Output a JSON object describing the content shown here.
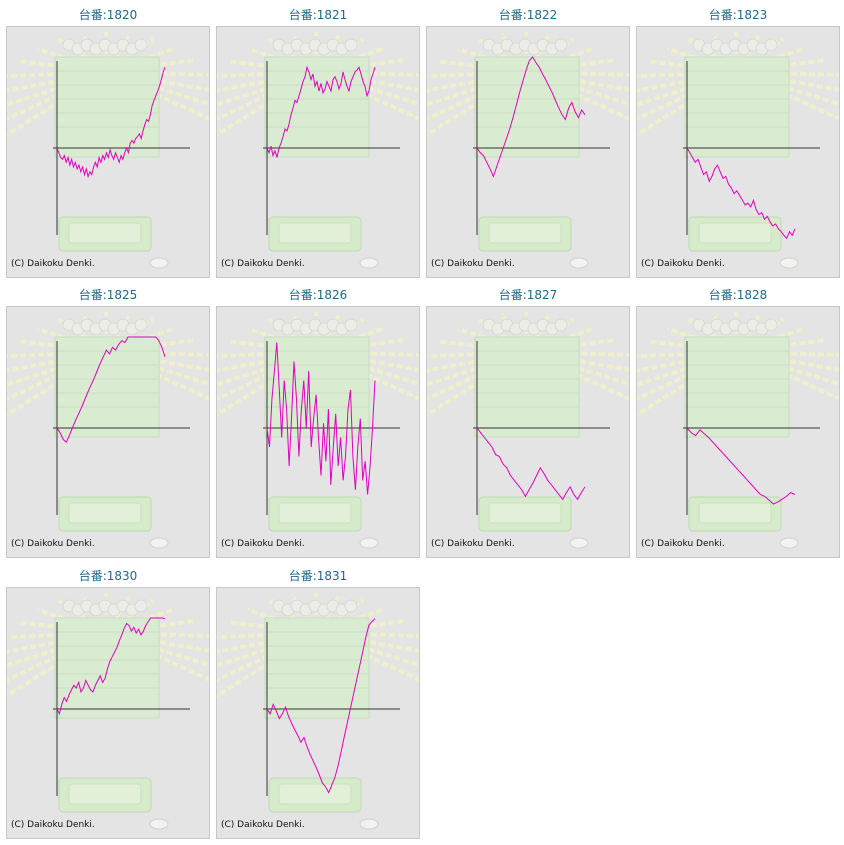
{
  "copyright": "(C) Daikoku Denki.",
  "line_color": "#e000c0",
  "title_color": "#1f6a8c",
  "background_art": "pachinko-pile-background",
  "chart_data": [
    {
      "type": "line",
      "title": "台番:1820",
      "values": [
        0,
        -0.05,
        -0.1,
        -0.12,
        -0.08,
        -0.15,
        -0.1,
        -0.18,
        -0.12,
        -0.2,
        -0.15,
        -0.22,
        -0.18,
        -0.25,
        -0.2,
        -0.28,
        -0.22,
        -0.3,
        -0.25,
        -0.28,
        -0.2,
        -0.15,
        -0.2,
        -0.1,
        -0.15,
        -0.08,
        -0.12,
        -0.05,
        -0.1,
        -0.02,
        -0.08,
        -0.12,
        -0.05,
        -0.1,
        -0.15,
        -0.08,
        -0.12,
        -0.05,
        0,
        -0.05,
        0.05,
        0.08,
        0.05,
        0.1,
        0.12,
        0.15,
        0.1,
        0.18,
        0.25,
        0.3,
        0.28,
        0.35,
        0.45,
        0.5,
        0.55,
        0.6,
        0.65,
        0.72,
        0.8,
        0.85
      ]
    },
    {
      "type": "line",
      "title": "台番:1821",
      "values": [
        0,
        -0.05,
        0.02,
        -0.08,
        -0.03,
        -0.1,
        0.0,
        0.05,
        0.12,
        0.2,
        0.18,
        0.25,
        0.35,
        0.42,
        0.5,
        0.48,
        0.55,
        0.62,
        0.7,
        0.75,
        0.85,
        0.8,
        0.72,
        0.78,
        0.65,
        0.7,
        0.6,
        0.68,
        0.58,
        0.62,
        0.7,
        0.65,
        0.6,
        0.72,
        0.75,
        0.7,
        0.62,
        0.68,
        0.8,
        0.72,
        0.65,
        0.6,
        0.7,
        0.75,
        0.8,
        0.82,
        0.85,
        0.78,
        0.7,
        0.65,
        0.55,
        0.6,
        0.72,
        0.78,
        0.85
      ]
    },
    {
      "type": "line",
      "title": "台番:1822",
      "values": [
        0,
        -0.05,
        -0.08,
        -0.15,
        -0.22,
        -0.3,
        -0.2,
        -0.1,
        0.0,
        0.1,
        0.2,
        0.32,
        0.45,
        0.58,
        0.7,
        0.82,
        0.92,
        0.98,
        0.9,
        0.85,
        0.78,
        0.72,
        0.65,
        0.58,
        0.5,
        0.42,
        0.35,
        0.3,
        0.42,
        0.48,
        0.38,
        0.32,
        0.4,
        0.35
      ]
    },
    {
      "type": "line",
      "title": "台番:1823",
      "values": [
        0,
        -0.05,
        -0.1,
        -0.15,
        -0.12,
        -0.2,
        -0.28,
        -0.25,
        -0.35,
        -0.3,
        -0.22,
        -0.18,
        -0.25,
        -0.32,
        -0.3,
        -0.38,
        -0.42,
        -0.48,
        -0.45,
        -0.5,
        -0.55,
        -0.6,
        -0.58,
        -0.62,
        -0.55,
        -0.65,
        -0.7,
        -0.68,
        -0.75,
        -0.72,
        -0.78,
        -0.82,
        -0.8,
        -0.85,
        -0.88,
        -0.92,
        -0.95,
        -0.88,
        -0.92,
        -0.85
      ]
    },
    {
      "type": "line",
      "title": "台番:1825",
      "values": [
        0,
        -0.05,
        -0.12,
        -0.15,
        -0.08,
        0.0,
        0.08,
        0.15,
        0.22,
        0.3,
        0.38,
        0.45,
        0.52,
        0.6,
        0.68,
        0.75,
        0.82,
        0.78,
        0.85,
        0.82,
        0.88,
        0.92,
        0.9,
        0.98,
        1.05,
        1.1,
        1.15,
        1.2,
        1.18,
        1.12,
        1.08,
        1.02,
        0.98,
        0.92,
        0.85,
        0.75
      ]
    },
    {
      "type": "line",
      "title": "台番:1826",
      "values": [
        0,
        -0.2,
        0.3,
        0.6,
        0.9,
        0.4,
        -0.1,
        0.5,
        0.2,
        -0.4,
        0.1,
        0.7,
        0.3,
        -0.3,
        0.2,
        0.5,
        0.0,
        0.6,
        -0.2,
        0.1,
        0.35,
        -0.1,
        -0.5,
        0.05,
        -0.35,
        0.2,
        -0.6,
        -0.2,
        0.15,
        -0.4,
        -0.1,
        -0.55,
        -0.3,
        0.2,
        0.4,
        -0.3,
        -0.65,
        -0.2,
        0.1,
        -0.55,
        -0.35,
        -0.7,
        -0.4,
        0.0,
        0.5
      ]
    },
    {
      "type": "line",
      "title": "台番:1827",
      "values": [
        0,
        -0.05,
        -0.1,
        -0.15,
        -0.2,
        -0.28,
        -0.3,
        -0.38,
        -0.42,
        -0.5,
        -0.55,
        -0.6,
        -0.65,
        -0.72,
        -0.65,
        -0.58,
        -0.5,
        -0.42,
        -0.48,
        -0.55,
        -0.6,
        -0.65,
        -0.7,
        -0.75,
        -0.68,
        -0.62,
        -0.7,
        -0.75,
        -0.68,
        -0.62
      ]
    },
    {
      "type": "line",
      "title": "台番:1828",
      "values": [
        0,
        -0.05,
        -0.08,
        -0.02,
        -0.06,
        -0.1,
        -0.15,
        -0.2,
        -0.25,
        -0.3,
        -0.35,
        -0.4,
        -0.45,
        -0.5,
        -0.55,
        -0.6,
        -0.65,
        -0.7,
        -0.72,
        -0.76,
        -0.8,
        -0.78,
        -0.75,
        -0.72,
        -0.68,
        -0.7
      ]
    },
    {
      "type": "line",
      "title": "台番:1830",
      "values": [
        0,
        -0.05,
        0.05,
        0.12,
        0.08,
        0.15,
        0.2,
        0.25,
        0.22,
        0.28,
        0.18,
        0.22,
        0.3,
        0.25,
        0.2,
        0.18,
        0.25,
        0.3,
        0.35,
        0.28,
        0.32,
        0.42,
        0.5,
        0.55,
        0.6,
        0.65,
        0.72,
        0.78,
        0.85,
        0.9,
        0.88,
        0.82,
        0.86,
        0.8,
        0.84,
        0.78,
        0.82,
        0.88,
        0.92,
        0.96,
        1.02,
        1.06,
        1.0,
        1.04,
        0.98,
        0.95
      ]
    },
    {
      "type": "line",
      "title": "台番:1831",
      "values": [
        0,
        -0.05,
        0.05,
        -0.02,
        -0.1,
        -0.05,
        0.02,
        -0.08,
        -0.15,
        -0.22,
        -0.28,
        -0.35,
        -0.3,
        -0.4,
        -0.48,
        -0.55,
        -0.62,
        -0.7,
        -0.78,
        -0.82,
        -0.88,
        -0.8,
        -0.72,
        -0.6,
        -0.45,
        -0.3,
        -0.15,
        0.0,
        0.15,
        0.3,
        0.45,
        0.6,
        0.75,
        0.88,
        0.92,
        0.95
      ]
    }
  ]
}
